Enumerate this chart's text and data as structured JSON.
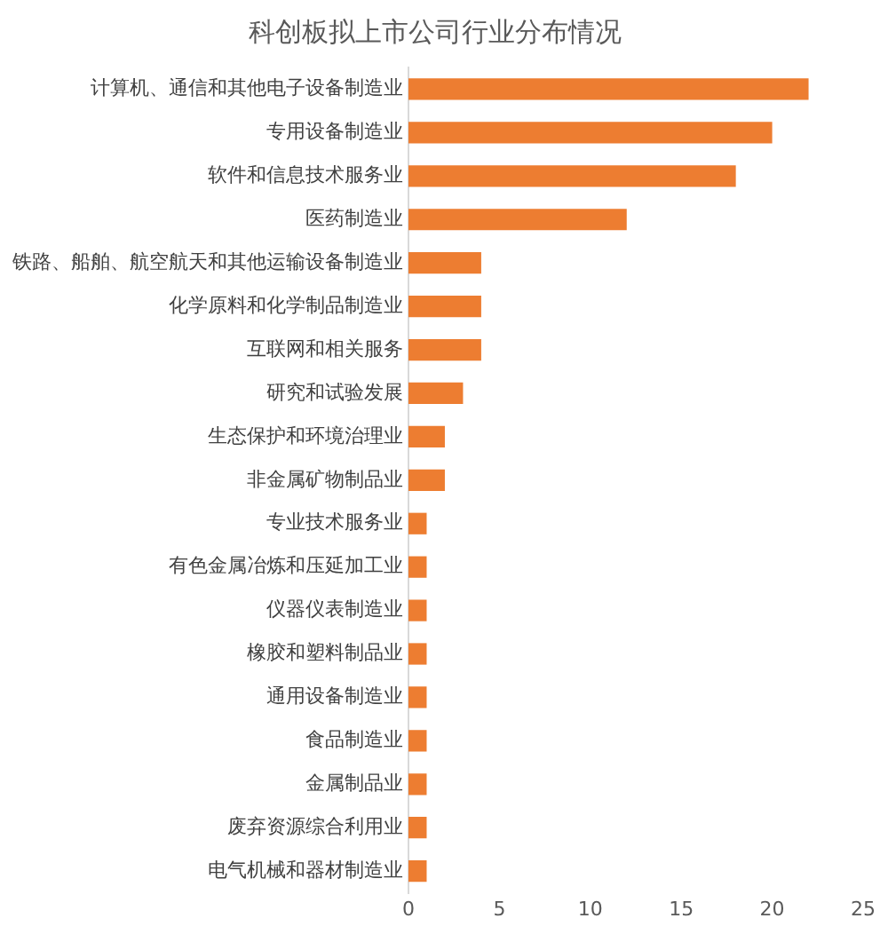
{
  "chart_data": {
    "type": "bar",
    "orientation": "horizontal",
    "title": "科创板拟上市公司行业分布情况",
    "categories": [
      "计算机、通信和其他电子设备制造业",
      "专用设备制造业",
      "软件和信息技术服务业",
      "医药制造业",
      "铁路、船舶、航空航天和其他运输设备制造业",
      "化学原料和化学制品制造业",
      "互联网和相关服务",
      "研究和试验发展",
      "生态保护和环境治理业",
      "非金属矿物制品业",
      "专业技术服务业",
      "有色金属冶炼和压延加工业",
      "仪器仪表制造业",
      "橡胶和塑料制品业",
      "通用设备制造业",
      "食品制造业",
      "金属制品业",
      "废弃资源综合利用业",
      "电气机械和器材制造业"
    ],
    "values": [
      22,
      20,
      18,
      12,
      4,
      4,
      4,
      3,
      2,
      2,
      1,
      1,
      1,
      1,
      1,
      1,
      1,
      1,
      1
    ],
    "color": "#ed7d31",
    "xlim": [
      0,
      25
    ],
    "xticks": [
      0,
      5,
      10,
      15,
      20,
      25
    ],
    "grid": false
  }
}
